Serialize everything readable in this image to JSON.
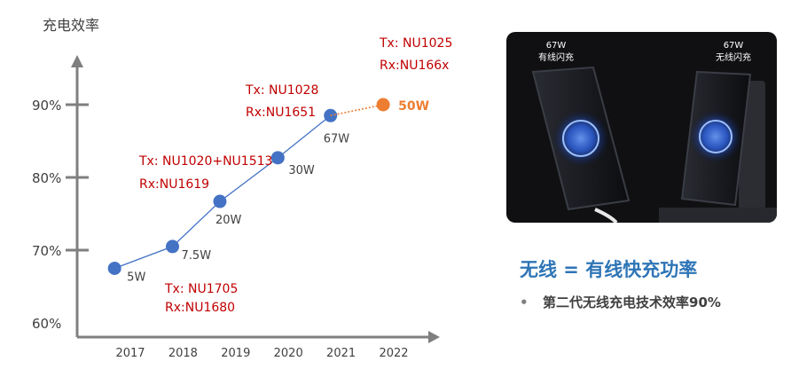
{
  "chart_data": {
    "type": "line",
    "ylabel": "充电效率",
    "y_ticks": [
      "60%",
      "70%",
      "80%",
      "90%"
    ],
    "categories": [
      "2017",
      "2018",
      "2019",
      "2020",
      "2021",
      "2022"
    ],
    "series": [
      {
        "points": [
          {
            "x": 2016.7,
            "y": 67.5,
            "label": "5W"
          },
          {
            "x": 2017.8,
            "y": 70.5,
            "label": "7.5W"
          },
          {
            "x": 2018.7,
            "y": 76.7,
            "label": "20W"
          },
          {
            "x": 2019.8,
            "y": 82.7,
            "label": "30W"
          },
          {
            "x": 2020.8,
            "y": 88.5,
            "label": "67W"
          }
        ],
        "color": "#4472c4"
      },
      {
        "points": [
          {
            "x": 2020.8,
            "y": 88.5
          },
          {
            "x": 2021.8,
            "y": 90.0,
            "label": "50W"
          }
        ],
        "color": "#ed7d31",
        "dashed": true
      }
    ],
    "annotations": [
      {
        "lines": [
          "Tx: NU1705",
          "Rx:NU1680"
        ],
        "color": "#c00000"
      },
      {
        "lines": [
          "Tx: NU1020+NU1513",
          "Rx:NU1619"
        ],
        "color": "#c00000"
      },
      {
        "lines": [
          "Tx: NU1028",
          "Rx:NU1651"
        ],
        "color": "#c00000"
      },
      {
        "lines": [
          "Tx: NU1025",
          "Rx:NU166x"
        ],
        "color": "#c00000"
      }
    ]
  },
  "photo": {
    "left_caption": [
      "67W",
      "有线闪充"
    ],
    "right_caption": [
      "67W",
      "无线闪充"
    ],
    "colors": {
      "background": "#101012",
      "glow": "#2f6bff"
    }
  },
  "headline": "无线 = 有线快充功率",
  "bullet": {
    "marker": "•",
    "text": "第二代无线充电技术效率90%"
  },
  "colors": {
    "headline": "#2e75b6",
    "annotation": "#c00000",
    "axis": "#7f7f7f"
  }
}
